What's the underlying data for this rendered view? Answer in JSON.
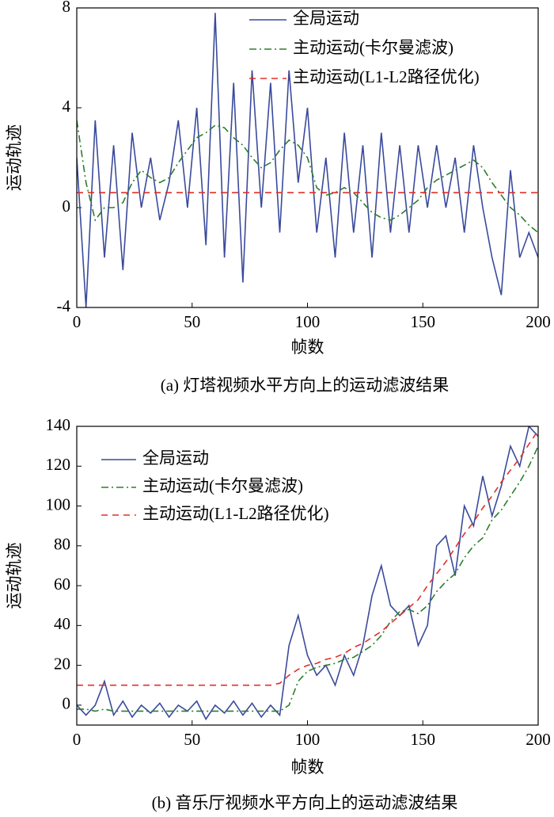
{
  "chart_data": [
    {
      "type": "line",
      "xlabel": "帧数",
      "ylabel": "运动轨迹",
      "caption": "(a) 灯塔视频水平方向上的运动滤波结果",
      "xlim": [
        0,
        200
      ],
      "xticks": [
        0,
        50,
        100,
        150,
        200
      ],
      "ylim": [
        -4,
        8
      ],
      "yticks": [
        -4,
        0,
        4,
        8
      ],
      "legend": "upper right",
      "x": [
        0,
        4,
        8,
        12,
        16,
        20,
        24,
        28,
        32,
        36,
        40,
        44,
        48,
        52,
        56,
        60,
        64,
        68,
        72,
        76,
        80,
        84,
        88,
        92,
        96,
        100,
        104,
        108,
        112,
        116,
        120,
        124,
        128,
        132,
        136,
        140,
        144,
        148,
        152,
        156,
        160,
        164,
        168,
        172,
        176,
        180,
        184,
        188,
        192,
        196,
        200
      ],
      "series": [
        {
          "name": "全局运动",
          "color": "#3a4a9c",
          "linestyle": "solid",
          "values": [
            2,
            -4,
            3.5,
            -2,
            2.5,
            -2.5,
            3,
            0,
            2,
            -0.5,
            1,
            3.5,
            0,
            4,
            -1.5,
            7.8,
            -2,
            5,
            -3,
            5.5,
            0,
            5,
            -1,
            5.5,
            1,
            4,
            -1,
            2,
            -2,
            3,
            -1,
            2.5,
            -2,
            3,
            -1,
            2.5,
            -1,
            2.5,
            0,
            2.5,
            0,
            2,
            -1,
            2.5,
            0,
            -2,
            -3.5,
            1.5,
            -2,
            -1,
            -2
          ]
        },
        {
          "name": "主动运动(卡尔曼滤波)",
          "color": "#2e7d2e",
          "linestyle": "dashdot",
          "values": [
            3.5,
            1,
            -0.5,
            0,
            0,
            0.2,
            1,
            1.5,
            1.2,
            1,
            1.2,
            1.8,
            2.3,
            2.8,
            3,
            3.3,
            3.2,
            2.8,
            2.5,
            2,
            1.6,
            1.8,
            2.3,
            2.7,
            2.5,
            2,
            0.8,
            0.5,
            0.6,
            0.8,
            0.6,
            0.2,
            -0.2,
            -0.4,
            -0.5,
            -0.3,
            0,
            0.3,
            0.8,
            1.1,
            1.3,
            1.5,
            1.7,
            1.9,
            1.6,
            1,
            0.5,
            0,
            -0.3,
            -0.7,
            -1
          ]
        },
        {
          "name": "主动运动(L1-L2路径优化)",
          "color": "#e0302a",
          "linestyle": "dashed",
          "values": [
            0.6,
            0.6,
            0.6,
            0.6,
            0.6,
            0.6,
            0.6,
            0.6,
            0.6,
            0.6,
            0.6,
            0.6,
            0.6,
            0.6,
            0.6,
            0.6,
            0.6,
            0.6,
            0.6,
            0.6,
            0.6,
            0.6,
            0.6,
            0.6,
            0.6,
            0.6,
            0.6,
            0.6,
            0.6,
            0.6,
            0.6,
            0.6,
            0.6,
            0.6,
            0.6,
            0.6,
            0.6,
            0.6,
            0.6,
            0.6,
            0.6,
            0.6,
            0.6,
            0.6,
            0.6,
            0.6,
            0.6,
            0.6,
            0.6,
            0.6,
            0.6
          ]
        }
      ]
    },
    {
      "type": "line",
      "xlabel": "帧数",
      "ylabel": "运动轨迹",
      "caption": "(b) 音乐厅视频水平方向上的运动滤波结果",
      "xlim": [
        0,
        200
      ],
      "xticks": [
        0,
        50,
        100,
        150,
        200
      ],
      "ylim": [
        -10,
        140
      ],
      "yticks": [
        0,
        20,
        40,
        60,
        80,
        100,
        120,
        140
      ],
      "legend": "upper left",
      "x": [
        0,
        4,
        8,
        12,
        16,
        20,
        24,
        28,
        32,
        36,
        40,
        44,
        48,
        52,
        56,
        60,
        64,
        68,
        72,
        76,
        80,
        84,
        88,
        92,
        96,
        100,
        104,
        108,
        112,
        116,
        120,
        124,
        128,
        132,
        136,
        140,
        144,
        148,
        152,
        156,
        160,
        164,
        168,
        172,
        176,
        180,
        184,
        188,
        192,
        196,
        200
      ],
      "series": [
        {
          "name": "全局运动",
          "color": "#3a4a9c",
          "linestyle": "solid",
          "values": [
            0,
            -5,
            0,
            12,
            -5,
            2,
            -6,
            0,
            -4,
            1,
            -6,
            0,
            -3,
            2,
            -7,
            0,
            -4,
            2,
            -5,
            1,
            -6,
            0,
            -5,
            30,
            45,
            25,
            15,
            20,
            10,
            25,
            15,
            30,
            55,
            70,
            50,
            45,
            50,
            30,
            40,
            80,
            85,
            65,
            100,
            90,
            115,
            95,
            110,
            130,
            120,
            140,
            135
          ]
        },
        {
          "name": "主动运动(卡尔曼滤波)",
          "color": "#2e7d2e",
          "linestyle": "dashdot",
          "values": [
            -2,
            -2,
            -3,
            -2,
            -3,
            -3,
            -3,
            -3,
            -3,
            -3,
            -3,
            -3,
            -3,
            -3,
            -3,
            -3,
            -3,
            -3,
            -3,
            -3,
            -3,
            -3,
            -3,
            0,
            12,
            17,
            19,
            20,
            21,
            23,
            24,
            27,
            30,
            35,
            42,
            47,
            48,
            46,
            50,
            57,
            62,
            66,
            74,
            80,
            84,
            93,
            98,
            105,
            112,
            120,
            130
          ]
        },
        {
          "name": "主动运动(L1-L2路径优化)",
          "color": "#e0302a",
          "linestyle": "dashed",
          "values": [
            10,
            10,
            10,
            10,
            10,
            10,
            10,
            10,
            10,
            10,
            10,
            10,
            10,
            10,
            10,
            10,
            10,
            10,
            10,
            10,
            10,
            10,
            11,
            15,
            18,
            20,
            21,
            23,
            24,
            26,
            29,
            31,
            34,
            37,
            41,
            45,
            49,
            53,
            60,
            66,
            72,
            79,
            86,
            92,
            99,
            105,
            112,
            118,
            124,
            131,
            138
          ]
        }
      ]
    }
  ]
}
